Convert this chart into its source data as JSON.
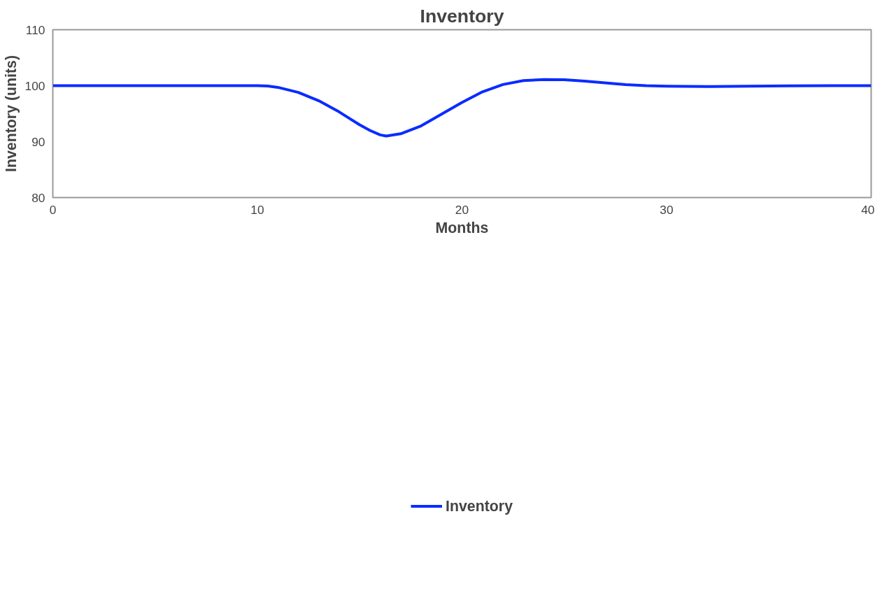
{
  "chart_data": {
    "type": "line",
    "title": "Inventory",
    "xlabel": "Months",
    "ylabel": "Inventory (units)",
    "xlim": [
      0,
      40
    ],
    "xticks": [
      0,
      10,
      20,
      30,
      40
    ],
    "ylim": [
      80,
      110
    ],
    "yticks": [
      80,
      90,
      100,
      110
    ],
    "grid": false,
    "legend": "bottom",
    "x": [
      0,
      5,
      10,
      10.5,
      11,
      12,
      13,
      14,
      15,
      15.5,
      16,
      16.3,
      17,
      18,
      19,
      20,
      21,
      22,
      23,
      24,
      25,
      26,
      27,
      28,
      29,
      30,
      32,
      34,
      36,
      38,
      40
    ],
    "series": [
      {
        "name": "Inventory",
        "color": "#0a2cff",
        "values": [
          100,
          100,
          100,
          99.95,
          99.7,
          98.8,
          97.3,
          95.3,
          93.0,
          92.0,
          91.2,
          91.0,
          91.4,
          92.8,
          94.9,
          97.0,
          98.9,
          100.2,
          100.9,
          101.1,
          101.05,
          100.8,
          100.5,
          100.2,
          100.0,
          99.9,
          99.85,
          99.9,
          99.97,
          100.0,
          100.0
        ]
      }
    ]
  }
}
